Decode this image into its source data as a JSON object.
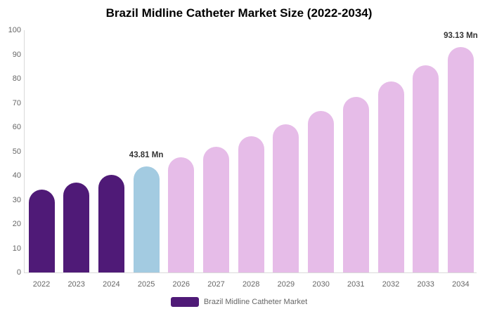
{
  "chart_data": {
    "type": "bar",
    "title": "Brazil Midline Catheter Market Size (2022-2034)",
    "xlabel": "",
    "ylabel": "",
    "ylim": [
      0,
      100
    ],
    "y_tick_step": 10,
    "grid": false,
    "unit": "Mn",
    "categories": [
      "2022",
      "2023",
      "2024",
      "2025",
      "2026",
      "2027",
      "2028",
      "2029",
      "2030",
      "2031",
      "2032",
      "2033",
      "2034"
    ],
    "values": [
      34.07,
      37.05,
      40.29,
      43.81,
      47.64,
      51.8,
      56.33,
      61.25,
      66.61,
      72.43,
      78.76,
      85.65,
      93.13
    ],
    "bar_roles": [
      "historical",
      "historical",
      "historical",
      "current",
      "forecast",
      "forecast",
      "forecast",
      "forecast",
      "forecast",
      "forecast",
      "forecast",
      "forecast",
      "forecast"
    ],
    "colors": {
      "historical": "#4F1A77",
      "current": "#A3CBE1",
      "forecast": "#E6BCE8",
      "axis_line": "#d9d9d9",
      "tick_text": "#666666",
      "data_label_text": "#333333"
    },
    "labeled_points": [
      {
        "category": "2025",
        "label": "43.81 Mn"
      },
      {
        "category": "2034",
        "label": "93.13 Mn"
      }
    ],
    "legend": {
      "position": "bottom",
      "items": [
        {
          "label": "Brazil Midline Catheter Market",
          "color": "#4F1A77"
        }
      ]
    }
  }
}
